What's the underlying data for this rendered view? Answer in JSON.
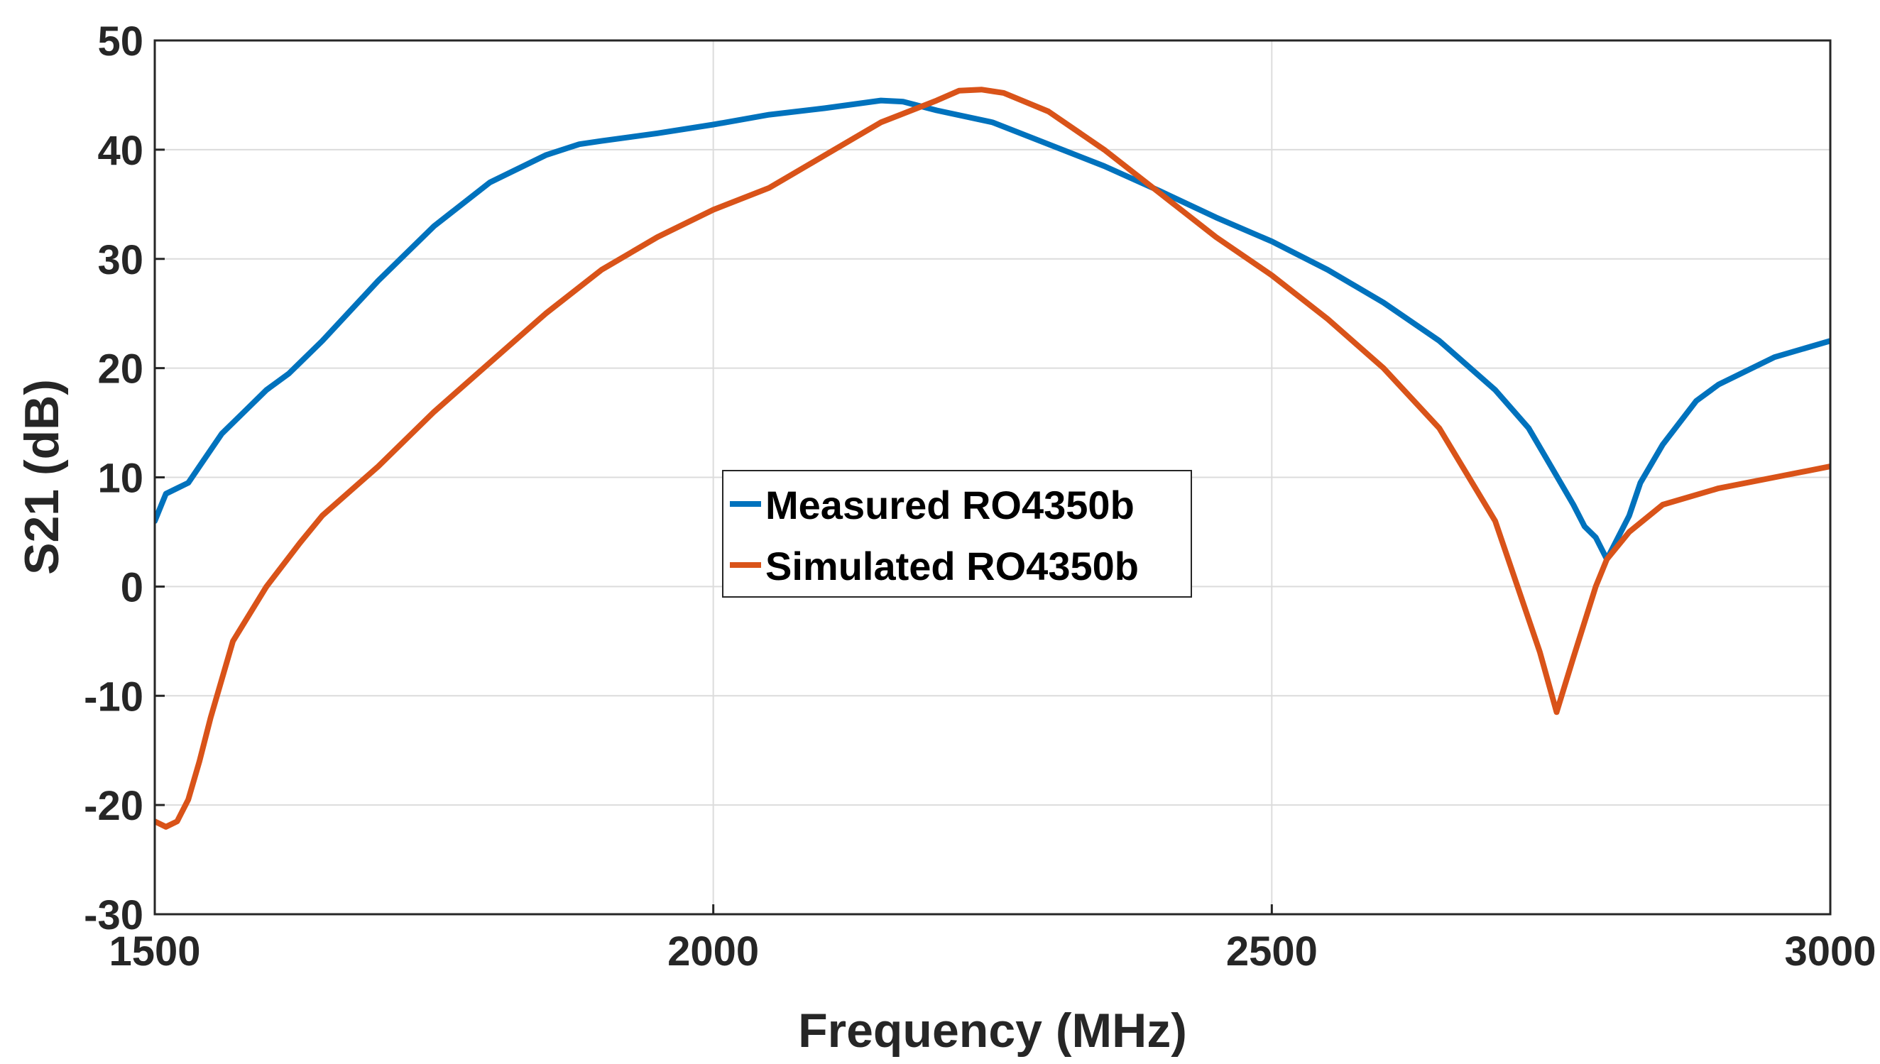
{
  "chart_data": {
    "type": "line",
    "title": "",
    "xlabel": "Frequency (MHz)",
    "ylabel": "S21 (dB)",
    "xlim": [
      1500,
      3000
    ],
    "ylim": [
      -30,
      50
    ],
    "xticks": [
      1500,
      2000,
      2500,
      3000
    ],
    "yticks": [
      50,
      40,
      30,
      20,
      10,
      0,
      -10,
      -20,
      -30
    ],
    "grid": true,
    "legend_position": "center",
    "series": [
      {
        "name": "Measured RO4350b",
        "color": "#0072BD",
        "x": [
          1500,
          1510,
          1520,
          1530,
          1540,
          1560,
          1580,
          1600,
          1620,
          1650,
          1700,
          1750,
          1800,
          1850,
          1880,
          1900,
          1950,
          2000,
          2050,
          2100,
          2150,
          2170,
          2200,
          2250,
          2300,
          2350,
          2400,
          2450,
          2500,
          2550,
          2600,
          2650,
          2700,
          2730,
          2750,
          2770,
          2780,
          2790,
          2800,
          2810,
          2820,
          2830,
          2850,
          2880,
          2900,
          2950,
          3000
        ],
        "values": [
          6,
          8.5,
          9,
          9.5,
          11,
          14,
          16,
          18,
          19.5,
          22.5,
          28,
          33,
          37,
          39.5,
          40.5,
          40.8,
          41.5,
          42.3,
          43.2,
          43.8,
          44.5,
          44.4,
          43.6,
          42.5,
          40.5,
          38.5,
          36.2,
          33.8,
          31.6,
          29,
          26,
          22.5,
          18,
          14.5,
          11,
          7.5,
          5.5,
          4.5,
          2.5,
          4.5,
          6.5,
          9.5,
          13,
          17,
          18.5,
          21,
          22.5
        ]
      },
      {
        "name": "Simulated RO4350b",
        "color": "#D95319",
        "x": [
          1500,
          1510,
          1520,
          1530,
          1540,
          1550,
          1570,
          1600,
          1630,
          1650,
          1700,
          1750,
          1800,
          1850,
          1900,
          1950,
          2000,
          2050,
          2100,
          2150,
          2200,
          2220,
          2240,
          2260,
          2300,
          2350,
          2400,
          2450,
          2500,
          2550,
          2600,
          2650,
          2700,
          2720,
          2740,
          2755,
          2770,
          2790,
          2800,
          2820,
          2850,
          2900,
          2950,
          3000
        ],
        "values": [
          -21.5,
          -22,
          -21.5,
          -19.5,
          -16,
          -12,
          -5,
          0,
          4,
          6.5,
          11,
          16,
          20.5,
          25,
          29,
          32,
          34.5,
          36.5,
          39.5,
          42.5,
          44.5,
          45.4,
          45.5,
          45.2,
          43.5,
          40,
          36,
          32,
          28.5,
          24.5,
          20,
          14.5,
          6,
          0,
          -6,
          -11.5,
          -6.5,
          0,
          2.5,
          5,
          7.5,
          9,
          10,
          11
        ]
      }
    ]
  }
}
